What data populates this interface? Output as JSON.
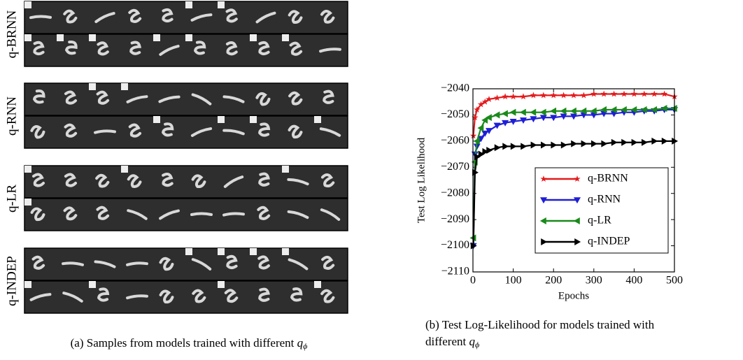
{
  "panel_a": {
    "row_labels": [
      "q-BRNN",
      "q-RNN",
      "q-LR",
      "q-INDEP"
    ],
    "caption": "(a) Samples from models trained with different",
    "caption_symbol": "q",
    "caption_subscript": "ϕ"
  },
  "panel_b": {
    "caption_line1": "(b) Test Log-Likelihood for models trained with",
    "caption_line2": "different",
    "caption_symbol": "q",
    "caption_subscript": "ϕ"
  },
  "chart_data": {
    "type": "line",
    "xlabel": "Epochs",
    "ylabel": "Test Log Likelihood",
    "x": [
      1,
      5,
      10,
      20,
      30,
      40,
      60,
      80,
      100,
      125,
      150,
      175,
      200,
      225,
      250,
      275,
      300,
      325,
      350,
      375,
      400,
      425,
      450,
      475,
      500
    ],
    "series": [
      {
        "name": "q-BRNN",
        "color": "#e31a1c",
        "marker": "star",
        "values": [
          -2058,
          -2051,
          -2048,
          -2046,
          -2045,
          -2044,
          -2043.5,
          -2043,
          -2043,
          -2043,
          -2042.5,
          -2042.5,
          -2042.5,
          -2042.5,
          -2042.5,
          -2042.5,
          -2042,
          -2042,
          -2042,
          -2042,
          -2042,
          -2042,
          -2042,
          -2042,
          -2043
        ]
      },
      {
        "name": "q-RNN",
        "color": "#1f1fd6",
        "marker": "triangle-down",
        "values": [
          -2100,
          -2065,
          -2062,
          -2059,
          -2057,
          -2056,
          -2054,
          -2053,
          -2052.5,
          -2052,
          -2051.5,
          -2051,
          -2051,
          -2050.5,
          -2050.5,
          -2050,
          -2050,
          -2049.5,
          -2049.5,
          -2049,
          -2049,
          -2048.5,
          -2048.5,
          -2048,
          -2048
        ]
      },
      {
        "name": "q-LR",
        "color": "#1a8a1a",
        "marker": "triangle-left",
        "values": [
          -2097,
          -2068,
          -2060,
          -2055,
          -2052,
          -2051,
          -2050,
          -2049.5,
          -2049,
          -2049,
          -2049,
          -2049,
          -2048.5,
          -2048.5,
          -2048.5,
          -2048.5,
          -2048.5,
          -2048,
          -2048,
          -2048,
          -2048,
          -2048,
          -2048,
          -2047.5,
          -2047.5
        ]
      },
      {
        "name": "q-INDEP",
        "color": "#000000",
        "marker": "triangle-right",
        "values": [
          -2100,
          -2072,
          -2066,
          -2065,
          -2064,
          -2063.5,
          -2062.5,
          -2062,
          -2062,
          -2062,
          -2061.5,
          -2061.5,
          -2061.5,
          -2061.5,
          -2061,
          -2061,
          -2061,
          -2061,
          -2060.5,
          -2060.5,
          -2060.5,
          -2060.5,
          -2060,
          -2060,
          -2060
        ]
      }
    ],
    "xlim": [
      0,
      500
    ],
    "xticks": [
      0,
      100,
      200,
      300,
      400,
      500
    ],
    "ylim": [
      -2110,
      -2040
    ],
    "yticks": [
      {
        "value": -2110,
        "label": "−2110"
      },
      {
        "value": -2100,
        "label": "−2100"
      },
      {
        "value": -2090,
        "label": "−2090"
      },
      {
        "value": -2080,
        "label": "−2080"
      },
      {
        "value": -2070,
        "label": "−2070"
      },
      {
        "value": -2060,
        "label": "−2060"
      },
      {
        "value": -2050,
        "label": "−2050"
      },
      {
        "value": -2040,
        "label": "−2040"
      }
    ],
    "legend": "lower right",
    "grid": false
  }
}
